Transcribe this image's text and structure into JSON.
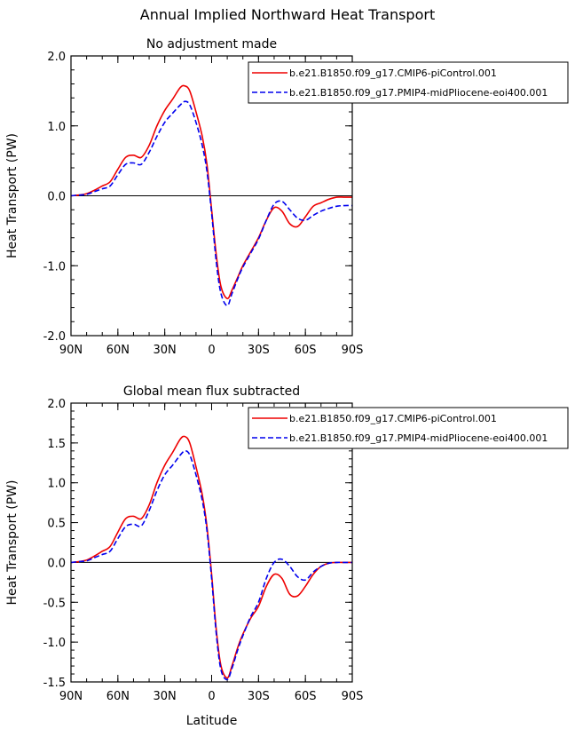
{
  "figure": {
    "title": "Annual Implied Northward Heat Transport"
  },
  "chart_data": [
    {
      "type": "line",
      "title": "No adjustment made",
      "xlabel": "",
      "ylabel": "Heat Transport (PW)",
      "xlim": [
        90,
        -90
      ],
      "ylim": [
        -2.0,
        2.0
      ],
      "xticks": [
        90,
        60,
        30,
        0,
        -30,
        -60,
        -90
      ],
      "xticklabels": [
        "90N",
        "60N",
        "30N",
        "0",
        "30S",
        "60S",
        "90S"
      ],
      "yticks": [
        -2.0,
        -1.0,
        0.0,
        1.0,
        2.0
      ],
      "yticklabels": [
        "-2.0",
        "-1.0",
        "0.0",
        "1.0",
        "2.0"
      ],
      "zero_line": true,
      "legend_position": "top-right",
      "series": [
        {
          "name": "b.e21.B1850.f09_g17.CMIP6-piControl.001",
          "color": "#ee0000",
          "dash": "solid",
          "x": [
            90,
            85,
            80,
            75,
            70,
            65,
            60,
            55,
            50,
            45,
            40,
            35,
            30,
            25,
            20,
            17,
            14,
            10,
            6,
            3,
            0,
            -3,
            -6,
            -10,
            -13,
            -17,
            -20,
            -25,
            -30,
            -35,
            -40,
            -45,
            -50,
            -55,
            -60,
            -65,
            -70,
            -75,
            -80,
            -85,
            -90
          ],
          "y": [
            0.0,
            0.01,
            0.03,
            0.08,
            0.14,
            0.2,
            0.38,
            0.55,
            0.58,
            0.55,
            0.72,
            1.0,
            1.22,
            1.38,
            1.55,
            1.57,
            1.5,
            1.2,
            0.85,
            0.45,
            -0.2,
            -0.85,
            -1.3,
            -1.47,
            -1.35,
            -1.15,
            -1.0,
            -0.8,
            -0.6,
            -0.35,
            -0.17,
            -0.22,
            -0.4,
            -0.44,
            -0.3,
            -0.15,
            -0.1,
            -0.05,
            -0.02,
            -0.02,
            -0.02
          ]
        },
        {
          "name": "b.e21.B1850.f09_g17.PMIP4-midPliocene-eoi400.001",
          "color": "#0000ee",
          "dash": "dashed",
          "x": [
            90,
            85,
            80,
            75,
            70,
            65,
            60,
            55,
            50,
            45,
            40,
            35,
            30,
            25,
            20,
            17,
            14,
            10,
            6,
            3,
            0,
            -3,
            -6,
            -10,
            -13,
            -17,
            -20,
            -25,
            -30,
            -35,
            -40,
            -45,
            -50,
            -55,
            -60,
            -65,
            -70,
            -75,
            -80,
            -85,
            -90
          ],
          "y": [
            0.0,
            0.01,
            0.02,
            0.06,
            0.1,
            0.14,
            0.3,
            0.45,
            0.47,
            0.45,
            0.62,
            0.85,
            1.05,
            1.18,
            1.3,
            1.35,
            1.3,
            1.05,
            0.72,
            0.35,
            -0.25,
            -0.95,
            -1.4,
            -1.57,
            -1.4,
            -1.17,
            -1.02,
            -0.82,
            -0.62,
            -0.35,
            -0.12,
            -0.08,
            -0.2,
            -0.32,
            -0.35,
            -0.28,
            -0.22,
            -0.18,
            -0.15,
            -0.14,
            -0.14
          ]
        }
      ]
    },
    {
      "type": "line",
      "title": "Global mean flux subtracted",
      "xlabel": "Latitude",
      "ylabel": "Heat Transport (PW)",
      "xlim": [
        90,
        -90
      ],
      "ylim": [
        -1.5,
        2.0
      ],
      "xticks": [
        90,
        60,
        30,
        0,
        -30,
        -60,
        -90
      ],
      "xticklabels": [
        "90N",
        "60N",
        "30N",
        "0",
        "30S",
        "60S",
        "90S"
      ],
      "yticks": [
        -1.5,
        -1.0,
        -0.5,
        0.0,
        0.5,
        1.0,
        1.5,
        2.0
      ],
      "yticklabels": [
        "-1.5",
        "-1.0",
        "-0.5",
        "0.0",
        "0.5",
        "1.0",
        "1.5",
        "2.0"
      ],
      "zero_line": true,
      "legend_position": "top-right",
      "series": [
        {
          "name": "b.e21.B1850.f09_g17.CMIP6-piControl.001",
          "color": "#ee0000",
          "dash": "solid",
          "x": [
            90,
            85,
            80,
            75,
            70,
            65,
            60,
            55,
            50,
            45,
            40,
            35,
            30,
            25,
            20,
            17,
            14,
            10,
            6,
            3,
            0,
            -3,
            -6,
            -10,
            -13,
            -17,
            -20,
            -25,
            -30,
            -35,
            -40,
            -45,
            -50,
            -55,
            -60,
            -65,
            -70,
            -75,
            -80,
            -85,
            -90
          ],
          "y": [
            0.0,
            0.01,
            0.03,
            0.08,
            0.14,
            0.2,
            0.38,
            0.55,
            0.58,
            0.55,
            0.72,
            1.0,
            1.22,
            1.38,
            1.55,
            1.58,
            1.5,
            1.2,
            0.85,
            0.45,
            -0.15,
            -0.85,
            -1.3,
            -1.45,
            -1.3,
            -1.05,
            -0.9,
            -0.7,
            -0.55,
            -0.3,
            -0.15,
            -0.2,
            -0.4,
            -0.42,
            -0.3,
            -0.15,
            -0.05,
            -0.01,
            0.0,
            0.0,
            0.0
          ]
        },
        {
          "name": "b.e21.B1850.f09_g17.PMIP4-midPliocene-eoi400.001",
          "color": "#0000ee",
          "dash": "dashed",
          "x": [
            90,
            85,
            80,
            75,
            70,
            65,
            60,
            55,
            50,
            45,
            40,
            35,
            30,
            25,
            20,
            17,
            14,
            10,
            6,
            3,
            0,
            -3,
            -6,
            -10,
            -13,
            -17,
            -20,
            -25,
            -30,
            -35,
            -40,
            -45,
            -50,
            -55,
            -60,
            -65,
            -70,
            -75,
            -80,
            -85,
            -90
          ],
          "y": [
            0.0,
            0.01,
            0.02,
            0.06,
            0.1,
            0.14,
            0.3,
            0.45,
            0.48,
            0.46,
            0.65,
            0.9,
            1.1,
            1.22,
            1.35,
            1.4,
            1.35,
            1.1,
            0.78,
            0.4,
            -0.2,
            -0.9,
            -1.35,
            -1.47,
            -1.33,
            -1.08,
            -0.92,
            -0.68,
            -0.5,
            -0.2,
            0.0,
            0.04,
            -0.05,
            -0.18,
            -0.22,
            -0.12,
            -0.05,
            -0.01,
            0.0,
            0.0,
            0.0
          ]
        }
      ]
    }
  ]
}
